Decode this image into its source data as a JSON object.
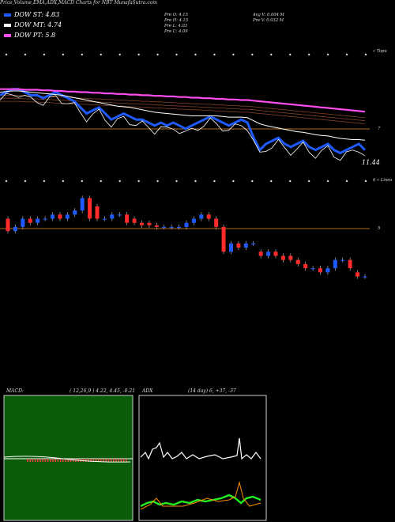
{
  "title": "Price,Volume,EMA,ADX,MACD Charts for NBT MunafaSutra.com",
  "legend": [
    {
      "label": "DOW ST: 4.83",
      "color": "#1e5aff"
    },
    {
      "label": "DOW MT: 4.74",
      "color": "#ffffff"
    },
    {
      "label": "DOW PT: 5.8",
      "color": "#ff4df0"
    }
  ],
  "stats": {
    "open": "Pre  O: 4.15",
    "high": "Pre  H: 4.15",
    "low": "Pre  L: 4.03",
    "close": "Pre  C: 4.09",
    "avg_vol": "Avg V: 0.004  M",
    "pre_vol": "Pre  V: 0.032  M"
  },
  "colors": {
    "price_line": "#1e5aff",
    "ema_mt": "#ffffff",
    "ema_pt": "#ff4df0",
    "level_line": "#b06a1c",
    "candle_up": "#1e5aff",
    "candle_down": "#ff2a2a",
    "macd_bg": "#0a5c0a",
    "adx_green": "#22ee22",
    "adx_orange": "#ff8c00"
  },
  "top_panel": {
    "right_label": "« Topu",
    "level_label": "7",
    "value_label": "11.44"
  },
  "mid_panel": {
    "right_label": "6 « Linea",
    "level_label": "5"
  },
  "macd": {
    "label": "MACD:",
    "params": "( 12,26,9 ) 4.22,  4.45,  -0.21"
  },
  "adx": {
    "label": "ADX",
    "params": "(14  day) 6,  +37,  -37"
  },
  "chart_data": [
    {
      "type": "line",
      "title": "Price with EMA",
      "series": [
        {
          "name": "DOW ST",
          "values": [
            11.9,
            11.95,
            12.0,
            12.0,
            11.95,
            11.9,
            11.9,
            11.85,
            11.9,
            11.95,
            11.9,
            11.85,
            11.8,
            11.7,
            11.6,
            11.65,
            11.7,
            11.6,
            11.5,
            11.55,
            11.6,
            11.55,
            11.5,
            11.5,
            11.45,
            11.4,
            11.45,
            11.4,
            11.45,
            11.4,
            11.35,
            11.4,
            11.45,
            11.5,
            11.55,
            11.5,
            11.45,
            11.4,
            11.45,
            11.5,
            11.45,
            11.2,
            11.0,
            11.1,
            11.15,
            11.2,
            11.1,
            11.05,
            11.1,
            11.15,
            11.05,
            11.0,
            11.05,
            11.1,
            11.0,
            10.95,
            11.0,
            11.05,
            11.1,
            11.0
          ]
        },
        {
          "name": "DOW MT",
          "values": [
            11.95,
            11.96,
            11.97,
            11.97,
            11.96,
            11.95,
            11.94,
            11.93,
            11.92,
            11.91,
            11.9,
            11.88,
            11.86,
            11.84,
            11.82,
            11.8,
            11.78,
            11.76,
            11.74,
            11.72,
            11.71,
            11.7,
            11.68,
            11.66,
            11.64,
            11.62,
            11.61,
            11.6,
            11.59,
            11.58,
            11.57,
            11.56,
            11.56,
            11.56,
            11.56,
            11.56,
            11.55,
            11.54,
            11.54,
            11.54,
            11.53,
            11.48,
            11.43,
            11.4,
            11.38,
            11.36,
            11.34,
            11.32,
            11.3,
            11.29,
            11.27,
            11.25,
            11.24,
            11.23,
            11.21,
            11.19,
            11.18,
            11.17,
            11.17,
            11.16
          ]
        },
        {
          "name": "DOW PT",
          "values": [
            12.0,
            12.0,
            12.0,
            12.0,
            11.99,
            11.99,
            11.99,
            11.98,
            11.98,
            11.97,
            11.97,
            11.96,
            11.96,
            11.95,
            11.95,
            11.94,
            11.94,
            11.93,
            11.93,
            11.92,
            11.92,
            11.91,
            11.91,
            11.9,
            11.9,
            11.89,
            11.89,
            11.88,
            11.88,
            11.87,
            11.87,
            11.86,
            11.86,
            11.85,
            11.85,
            11.84,
            11.84,
            11.83,
            11.83,
            11.82,
            11.82,
            11.81,
            11.8,
            11.79,
            11.78,
            11.77,
            11.76,
            11.75,
            11.74,
            11.73,
            11.72,
            11.71,
            11.7,
            11.69,
            11.68,
            11.67,
            11.66,
            11.65,
            11.64,
            11.63
          ]
        }
      ]
    },
    {
      "type": "bar",
      "title": "Candles",
      "series": [
        {
          "name": "open",
          "values": [
            4.9,
            4.75,
            4.8,
            4.9,
            4.85,
            4.9,
            4.9,
            4.95,
            4.9,
            4.95,
            5.0,
            5.15,
            5.05,
            4.9,
            4.9,
            4.95,
            4.95,
            4.9,
            4.85,
            4.85,
            4.82,
            4.8,
            4.8,
            4.8,
            4.8,
            4.85,
            4.9,
            4.95,
            4.9,
            4.8,
            4.5,
            4.6,
            4.55,
            4.6,
            4.5,
            4.45,
            4.5,
            4.45,
            4.45,
            4.4,
            4.35,
            4.3,
            4.3,
            4.25,
            4.3,
            4.4,
            4.4,
            4.25,
            4.2
          ]
        },
        {
          "name": "close",
          "values": [
            4.75,
            4.8,
            4.9,
            4.85,
            4.9,
            4.9,
            4.95,
            4.9,
            4.95,
            5.0,
            5.15,
            4.9,
            4.9,
            4.9,
            4.95,
            4.95,
            4.85,
            4.85,
            4.82,
            4.82,
            4.8,
            4.8,
            4.8,
            4.8,
            4.85,
            4.9,
            4.95,
            4.9,
            4.8,
            4.5,
            4.6,
            4.55,
            4.6,
            4.6,
            4.45,
            4.5,
            4.45,
            4.4,
            4.4,
            4.35,
            4.3,
            4.3,
            4.25,
            4.3,
            4.4,
            4.4,
            4.3,
            4.2,
            4.2
          ]
        }
      ]
    }
  ]
}
